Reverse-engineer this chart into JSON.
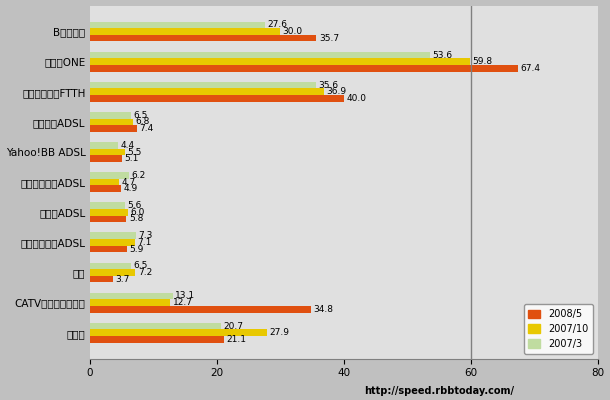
{
  "categories": [
    "Bフレッツ",
    "ひかりONE",
    "他キャリアのFTTH",
    "フレッツADSL",
    "Yahoo!BB ADSL",
    "イーアクセスADSL",
    "アッカADSL",
    "他キャリアのADSL",
    "無線",
    "CATVインターネット",
    "専用線"
  ],
  "series": {
    "2008/5": [
      35.7,
      67.4,
      40.0,
      7.4,
      5.1,
      4.9,
      5.8,
      5.9,
      3.7,
      34.8,
      21.1
    ],
    "2007/10": [
      30.0,
      59.8,
      36.9,
      6.8,
      5.5,
      4.7,
      6.0,
      7.1,
      7.2,
      12.7,
      27.9
    ],
    "2007/3": [
      27.6,
      53.6,
      35.6,
      6.5,
      4.4,
      6.2,
      5.6,
      7.3,
      6.5,
      13.1,
      20.7
    ]
  },
  "colors": {
    "2008/5": "#E05010",
    "2007/10": "#E8C800",
    "2007/3": "#C0DCA0"
  },
  "xlim": [
    0,
    80
  ],
  "xticks": [
    0,
    20,
    40,
    60,
    80
  ],
  "bar_height": 0.22,
  "background_color": "#C0C0C0",
  "plot_bg_color": "#E0E0E0",
  "label_fontsize": 6.5,
  "tick_fontsize": 7.5,
  "cat_fontsize": 7.5,
  "watermark": "http://speed.rbbtoday.com/",
  "vline_x": 60
}
